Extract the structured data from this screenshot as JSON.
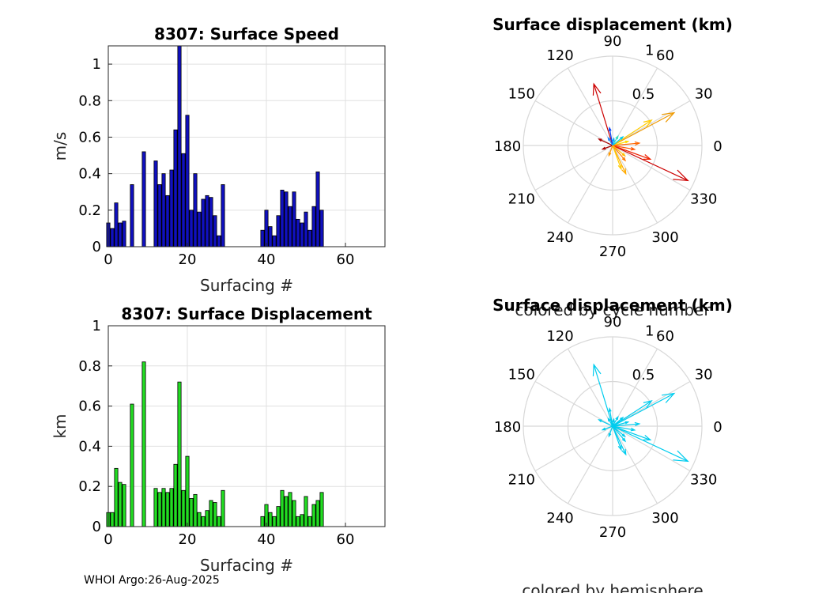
{
  "footer": "WHOI Argo:26-Aug-2025",
  "chart_data": [
    {
      "type": "bar",
      "title": "8307: Surface Speed",
      "xlabel": "Surfacing #",
      "ylabel": "m/s",
      "xlim": [
        0,
        70
      ],
      "ylim": [
        0,
        1.1
      ],
      "xticks": [
        0,
        20,
        40,
        60
      ],
      "yticks": [
        0,
        0.2,
        0.4,
        0.6,
        0.8,
        1
      ],
      "color": "#1010c0",
      "x": [
        0,
        1,
        2,
        3,
        4,
        6,
        9,
        12,
        13,
        14,
        15,
        16,
        17,
        18,
        19,
        20,
        21,
        22,
        23,
        24,
        25,
        26,
        27,
        28,
        29,
        39,
        40,
        41,
        42,
        43,
        44,
        45,
        46,
        47,
        48,
        49,
        50,
        51,
        52,
        53,
        54
      ],
      "values": [
        0.13,
        0.1,
        0.24,
        0.13,
        0.14,
        0.34,
        0.52,
        0.47,
        0.34,
        0.4,
        0.28,
        0.42,
        0.64,
        1.1,
        0.51,
        0.72,
        0.2,
        0.4,
        0.19,
        0.26,
        0.28,
        0.27,
        0.17,
        0.06,
        0.34,
        0.09,
        0.2,
        0.11,
        0.06,
        0.17,
        0.31,
        0.3,
        0.22,
        0.3,
        0.15,
        0.13,
        0.19,
        0.09,
        0.22,
        0.41,
        0.2
      ]
    },
    {
      "type": "bar",
      "title": "8307: Surface Displacement",
      "xlabel": "Surfacing #",
      "ylabel": "km",
      "xlim": [
        0,
        70
      ],
      "ylim": [
        0,
        1
      ],
      "xticks": [
        0,
        20,
        40,
        60
      ],
      "yticks": [
        0,
        0.2,
        0.4,
        0.6,
        0.8,
        1
      ],
      "color": "#22dd22",
      "x": [
        0,
        1,
        2,
        3,
        4,
        6,
        9,
        12,
        13,
        14,
        15,
        16,
        17,
        18,
        19,
        20,
        21,
        22,
        23,
        24,
        25,
        26,
        27,
        28,
        29,
        39,
        40,
        41,
        42,
        43,
        44,
        45,
        46,
        47,
        48,
        49,
        50,
        51,
        52,
        53,
        54
      ],
      "values": [
        0.07,
        0.07,
        0.29,
        0.22,
        0.21,
        0.61,
        0.82,
        0.19,
        0.17,
        0.19,
        0.17,
        0.19,
        0.31,
        0.72,
        0.18,
        0.35,
        0.14,
        0.16,
        0.07,
        0.05,
        0.08,
        0.13,
        0.12,
        0.05,
        0.18,
        0.05,
        0.11,
        0.07,
        0.05,
        0.1,
        0.18,
        0.15,
        0.17,
        0.13,
        0.05,
        0.06,
        0.15,
        0.05,
        0.11,
        0.13,
        0.17
      ]
    },
    {
      "type": "polar",
      "title": "Surface displacement (km)",
      "caption": "colored by cycle number",
      "rlim": [
        0,
        1
      ],
      "rticks": [
        0.5,
        1
      ],
      "theta_ticks": [
        0,
        30,
        60,
        90,
        120,
        150,
        180,
        210,
        240,
        270,
        300,
        330
      ],
      "color_mode": "cycle",
      "vectors": [
        {
          "angle": 107,
          "r": 0.72,
          "color": "#cc0000"
        },
        {
          "angle": 28,
          "r": 0.78,
          "color": "#ee9900"
        },
        {
          "angle": 33,
          "r": 0.52,
          "color": "#ffcc00"
        },
        {
          "angle": 155,
          "r": 0.17,
          "color": "#aa0000"
        },
        {
          "angle": 335,
          "r": 0.93,
          "color": "#cc0000"
        },
        {
          "angle": 340,
          "r": 0.45,
          "color": "#ee2200"
        },
        {
          "angle": 295,
          "r": 0.35,
          "color": "#ffaa00"
        },
        {
          "angle": 290,
          "r": 0.28,
          "color": "#ffcc00"
        },
        {
          "angle": 310,
          "r": 0.22,
          "color": "#ff7700"
        },
        {
          "angle": 200,
          "r": 0.12,
          "color": "#aa0000"
        },
        {
          "angle": 350,
          "r": 0.25,
          "color": "#ff5500"
        },
        {
          "angle": 15,
          "r": 0.18,
          "color": "#ffdd00"
        },
        {
          "angle": 40,
          "r": 0.15,
          "color": "#00ccee"
        },
        {
          "angle": 60,
          "r": 0.12,
          "color": "#33ddbb"
        },
        {
          "angle": 100,
          "r": 0.2,
          "color": "#0044ff"
        },
        {
          "angle": 120,
          "r": 0.1,
          "color": "#2288ff"
        },
        {
          "angle": 250,
          "r": 0.12,
          "color": "#ff9900"
        },
        {
          "angle": 5,
          "r": 0.3,
          "color": "#ff6600"
        },
        {
          "angle": 320,
          "r": 0.18,
          "color": "#ffbb00"
        },
        {
          "angle": 80,
          "r": 0.08,
          "color": "#00aaff"
        }
      ]
    },
    {
      "type": "polar",
      "title": "Surface displacement (km)",
      "caption": "colored by hemisphere",
      "rlim": [
        0,
        1
      ],
      "rticks": [
        0.5,
        1
      ],
      "theta_ticks": [
        0,
        30,
        60,
        90,
        120,
        150,
        180,
        210,
        240,
        270,
        300,
        330
      ],
      "color_mode": "hemisphere",
      "vectors": [
        {
          "angle": 107,
          "r": 0.72,
          "color": "#00ccee"
        },
        {
          "angle": 28,
          "r": 0.78,
          "color": "#00ccee"
        },
        {
          "angle": 33,
          "r": 0.52,
          "color": "#00ccee"
        },
        {
          "angle": 155,
          "r": 0.17,
          "color": "#00ccee"
        },
        {
          "angle": 335,
          "r": 0.93,
          "color": "#00ccee"
        },
        {
          "angle": 340,
          "r": 0.45,
          "color": "#00ccee"
        },
        {
          "angle": 295,
          "r": 0.35,
          "color": "#00ccee"
        },
        {
          "angle": 290,
          "r": 0.28,
          "color": "#00ccee"
        },
        {
          "angle": 310,
          "r": 0.22,
          "color": "#00ccee"
        },
        {
          "angle": 200,
          "r": 0.12,
          "color": "#00ccee"
        },
        {
          "angle": 350,
          "r": 0.25,
          "color": "#00ccee"
        },
        {
          "angle": 15,
          "r": 0.18,
          "color": "#00ccee"
        },
        {
          "angle": 40,
          "r": 0.15,
          "color": "#00ccee"
        },
        {
          "angle": 60,
          "r": 0.12,
          "color": "#00ccee"
        },
        {
          "angle": 100,
          "r": 0.2,
          "color": "#00ccee"
        },
        {
          "angle": 120,
          "r": 0.1,
          "color": "#00ccee"
        },
        {
          "angle": 250,
          "r": 0.12,
          "color": "#00ccee"
        },
        {
          "angle": 5,
          "r": 0.3,
          "color": "#00ccee"
        },
        {
          "angle": 320,
          "r": 0.18,
          "color": "#00ccee"
        },
        {
          "angle": 80,
          "r": 0.08,
          "color": "#00ccee"
        }
      ]
    }
  ]
}
